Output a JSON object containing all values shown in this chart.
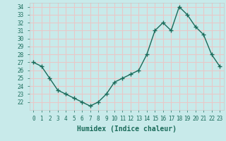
{
  "x": [
    0,
    1,
    2,
    3,
    4,
    5,
    6,
    7,
    8,
    9,
    10,
    11,
    12,
    13,
    14,
    15,
    16,
    17,
    18,
    19,
    20,
    21,
    22,
    23
  ],
  "y": [
    27,
    26.5,
    25,
    23.5,
    23,
    22.5,
    22,
    21.5,
    22,
    23,
    24.5,
    25,
    25.5,
    26,
    28,
    31,
    32,
    31,
    34,
    33,
    31.5,
    30.5,
    28,
    26.5
  ],
  "line_color": "#1a6b5a",
  "marker": "+",
  "markersize": 4,
  "linewidth": 1.0,
  "bg_color": "#c8eaea",
  "grid_color": "#e8c8c8",
  "xlabel": "Humidex (Indice chaleur)",
  "ylim": [
    21.0,
    34.5
  ],
  "xlim": [
    -0.5,
    23.5
  ],
  "yticks": [
    22,
    23,
    24,
    25,
    26,
    27,
    28,
    29,
    30,
    31,
    32,
    33,
    34
  ],
  "xticks": [
    0,
    1,
    2,
    3,
    4,
    5,
    6,
    7,
    8,
    9,
    10,
    11,
    12,
    13,
    14,
    15,
    16,
    17,
    18,
    19,
    20,
    21,
    22,
    23
  ],
  "tick_fontsize": 5.5,
  "xlabel_fontsize": 7,
  "xlabel_fontweight": "bold",
  "markeredgewidth": 1.0
}
